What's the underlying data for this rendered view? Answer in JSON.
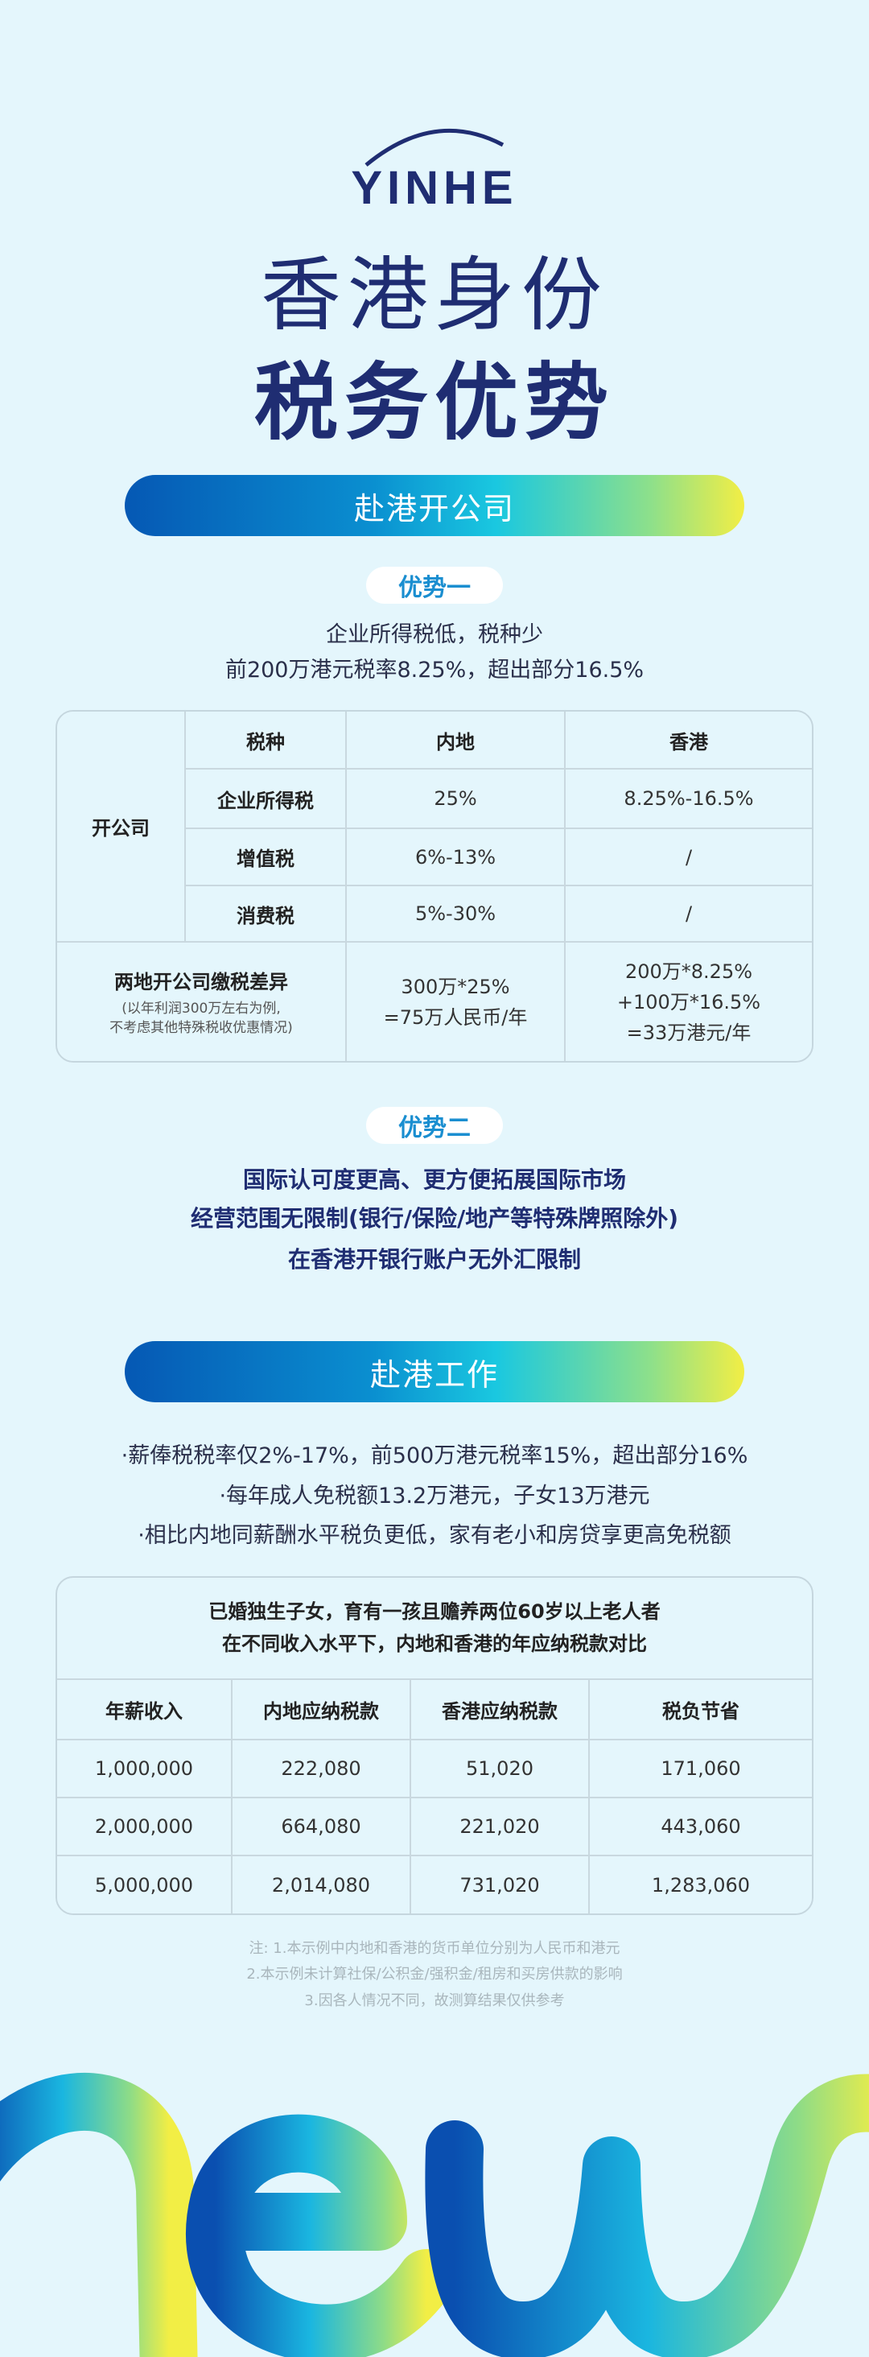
{
  "logo": {
    "text": "YINHE",
    "color": "#1f2d72"
  },
  "title": {
    "line1": "香港身份",
    "line2": "税务优势"
  },
  "section1": {
    "banner": "赴港开公司",
    "adv1": {
      "label": "优势一",
      "lines": [
        "企业所得税低，税种少",
        "前200万港元税率8.25%，超出部分16.5%"
      ]
    },
    "table": {
      "row_group": "开公司",
      "headers": [
        "税种",
        "内地",
        "香港"
      ],
      "rows": [
        [
          "企业所得税",
          "25%",
          "8.25%-16.5%"
        ],
        [
          "增值税",
          "6%-13%",
          "/"
        ],
        [
          "消费税",
          "5%-30%",
          "/"
        ]
      ],
      "diff": {
        "label": "两地开公司缴税差异",
        "note1": "(以年利润300万左右为例,",
        "note2": "不考虑其他特殊税收优惠情况)",
        "mainland": [
          "300万*25%",
          "=75万人民币/年"
        ],
        "hk": [
          "200万*8.25%",
          "+100万*16.5%",
          "=33万港元/年"
        ]
      }
    },
    "adv2": {
      "label": "优势二",
      "lines": [
        "国际认可度更高、更方便拓展国际市场",
        "经营范围无限制(银行/保险/地产等特殊牌照除外)",
        "在香港开银行账户无外汇限制"
      ]
    }
  },
  "section2": {
    "banner": "赴港工作",
    "bullets": [
      "·薪俸税税率仅2%-17%，前500万港元税率15%，超出部分16%",
      "·每年成人免税额13.2万港元，子女13万港元",
      "·相比内地同薪酬水平税负更低，家有老小和房贷享更高免税额"
    ],
    "table": {
      "title1": "已婚独生子女，育有一孩且赡养两位60岁以上老人者",
      "title2": "在不同收入水平下，内地和香港的年应纳税款对比",
      "headers": [
        "年薪收入",
        "内地应纳税款",
        "香港应纳税款",
        "税负节省"
      ],
      "rows": [
        [
          "1,000,000",
          "222,080",
          "51,020",
          "171,060"
        ],
        [
          "2,000,000",
          "664,080",
          "221,020",
          "443,060"
        ],
        [
          "5,000,000",
          "2,014,080",
          "731,020",
          "1,283,060"
        ]
      ]
    },
    "notes": [
      "注: 1.本示例中内地和香港的货币单位分别为人民币和港元",
      "2.本示例未计算社保/公积金/强积金/租房和买房供款的影响",
      "3.因各人情况不同，故测算结果仅供参考"
    ]
  },
  "decoration": {
    "word": "new",
    "gradient": [
      "#0a4fb0",
      "#1ab6e0",
      "#9be07a",
      "#f2ee45"
    ]
  }
}
